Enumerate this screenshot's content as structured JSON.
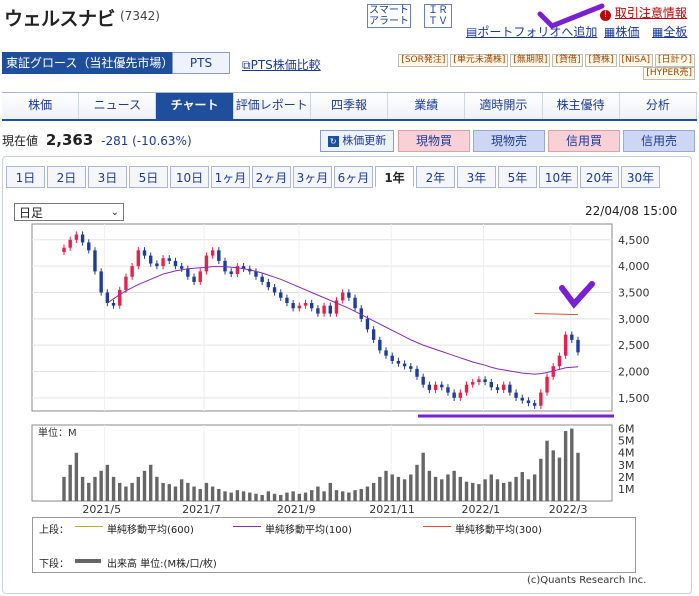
{
  "header": {
    "title": "ウェルスナビ",
    "code": "(7342)",
    "smart_alert": [
      "スマート",
      "アラート"
    ],
    "irtv": [
      "ＩＲ",
      "ＴＶ"
    ],
    "warning_link": "取引注意情報",
    "portfolio_link": "ポートフォリオへ追加",
    "stock_price_link": "株価",
    "full_table_link": "全板"
  },
  "market": {
    "label": "東証グロース（当社優先市場）",
    "pts": "PTS",
    "pts_compare": "PTS株価比較",
    "badges_row1": [
      "[SOR発注]",
      "[単元未満株]",
      "[無期限]",
      "[貸借]",
      "[貸株]",
      "[NISA]",
      "[日計り]"
    ],
    "badges_row2": [
      "[HYPER売]"
    ]
  },
  "nav": [
    "株価",
    "ニュース",
    "チャート",
    "評価レポート",
    "四季報",
    "業績",
    "適時開示",
    "株主優待",
    "分析"
  ],
  "nav_active": 2,
  "price": {
    "label": "現在値",
    "value": "2,363",
    "change": "-281 (-10.63%)",
    "refresh": "株価更新",
    "trade_buttons": [
      "現物買",
      "現物売",
      "信用買",
      "信用売"
    ]
  },
  "periods": [
    "1日",
    "2日",
    "3日",
    "5日",
    "10日",
    "1ヶ月",
    "2ヶ月",
    "3ヶ月",
    "6ヶ月",
    "1年",
    "2年",
    "3年",
    "5年",
    "10年",
    "20年",
    "30年"
  ],
  "period_active": 9,
  "chart_controls": {
    "select": "日足",
    "datetime": "22/04/08 15:00"
  },
  "chart_data": {
    "type": "candlestick",
    "y_ticks": [
      "4,500",
      "4,000",
      "3,500",
      "3,000",
      "2,500",
      "2,000",
      "1,500"
    ],
    "ylim": [
      1250,
      4800
    ],
    "vol_ticks": [
      "6M",
      "5M",
      "4M",
      "3M",
      "2M",
      "1M"
    ],
    "vol_unit": "単位：M",
    "x_ticks": [
      "2021/5",
      "2021/7",
      "2021/9",
      "2021/11",
      "2022/1",
      "2022/3"
    ],
    "x_tick_pos": [
      0.085,
      0.285,
      0.475,
      0.66,
      0.845,
      1.02
    ],
    "close": [
      4350,
      4500,
      4600,
      4450,
      4300,
      3900,
      3500,
      3300,
      3250,
      3550,
      3800,
      4000,
      4300,
      4200,
      4050,
      4000,
      4150,
      4100,
      4000,
      3950,
      3800,
      3700,
      3900,
      4200,
      4300,
      4100,
      3900,
      3850,
      4000,
      3950,
      3900,
      3800,
      3700,
      3600,
      3500,
      3400,
      3300,
      3200,
      3250,
      3300,
      3200,
      3100,
      3250,
      3100,
      3350,
      3500,
      3400,
      3200,
      3000,
      2800,
      2600,
      2400,
      2300,
      2200,
      2150,
      2100,
      2050,
      1900,
      1750,
      1650,
      1750,
      1700,
      1600,
      1500,
      1600,
      1750,
      1800,
      1850,
      1800,
      1700,
      1650,
      1750,
      1600,
      1500,
      1450,
      1400,
      1350,
      1600,
      1900,
      2100,
      2300,
      2700,
      2600,
      2363
    ],
    "ma100": [
      null,
      null,
      null,
      null,
      null,
      null,
      null,
      3300,
      3380,
      3460,
      3530,
      3590,
      3650,
      3700,
      3750,
      3800,
      3850,
      3880,
      3910,
      3930,
      3950,
      3960,
      3970,
      3980,
      3990,
      3990,
      3990,
      3980,
      3970,
      3950,
      3930,
      3900,
      3870,
      3830,
      3790,
      3750,
      3700,
      3650,
      3600,
      3550,
      3500,
      3450,
      3400,
      3350,
      3300,
      3250,
      3200,
      3140,
      3080,
      3020,
      2960,
      2900,
      2840,
      2780,
      2720,
      2660,
      2600,
      2550,
      2500,
      2460,
      2420,
      2380,
      2340,
      2300,
      2260,
      2220,
      2180,
      2150,
      2120,
      2080,
      2050,
      2030,
      2010,
      1990,
      1970,
      1960,
      1950,
      1960,
      1980,
      2010,
      2040,
      2070,
      2080,
      2090
    ],
    "ma300": [
      {
        "i": 76,
        "v": 3100
      },
      {
        "i": 83,
        "v": 3080
      }
    ],
    "volume": [
      2,
      3,
      4,
      2,
      1.5,
      2,
      2.5,
      3,
      2,
      1.5,
      1.2,
      1.5,
      2,
      2.5,
      3,
      2,
      1.5,
      1.4,
      1.2,
      1.8,
      1.5,
      1.2,
      1,
      1.5,
      1.2,
      1,
      0.8,
      0.7,
      0.9,
      0.8,
      0.7,
      0.6,
      0.5,
      0.8,
      0.6,
      0.5,
      0.7,
      0.8,
      0.6,
      0.7,
      0.9,
      1.2,
      0.8,
      1.5,
      0.9,
      0.8,
      0.7,
      0.9,
      1,
      1.2,
      1.5,
      2,
      2.5,
      2.2,
      2,
      1.8,
      2.2,
      3,
      4,
      2.5,
      2,
      1.8,
      2.2,
      2.5,
      2,
      1.6,
      1.5,
      1.4,
      1.8,
      2.2,
      1.8,
      1.5,
      1.6,
      2,
      2.4,
      1.8,
      2.2,
      3.5,
      5,
      4.2,
      3.6,
      5.8,
      6,
      4
    ]
  },
  "legend": {
    "upper_label": "上段：",
    "lower_label": "下段：",
    "items": [
      "単純移動平均(600)",
      "単純移動平均(100)",
      "単純移動平均(300)"
    ],
    "item_colors": [
      "#b5b500",
      "#8a2ab5",
      "#e0502a"
    ],
    "volume_item": "出来高 単位:(M株/口/枚)"
  },
  "copyright": "(c)Quants Research Inc."
}
